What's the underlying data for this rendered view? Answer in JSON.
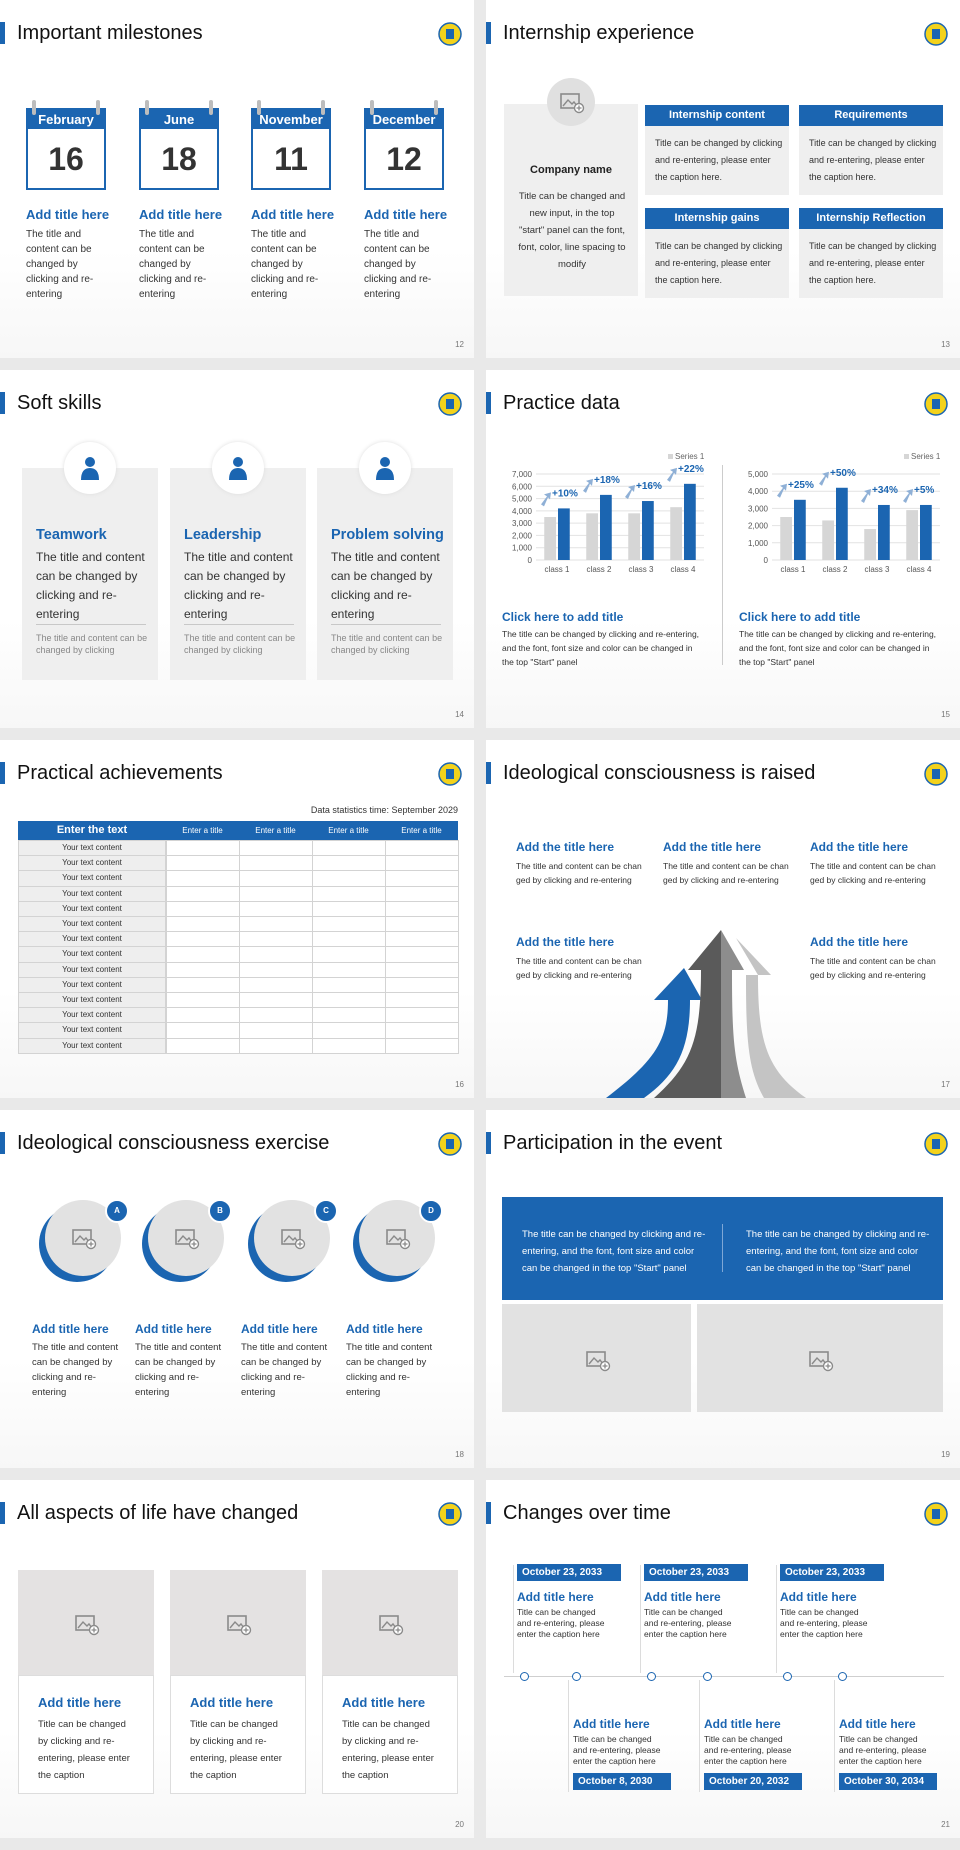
{
  "slides": [
    {
      "title": "Important milestones",
      "page": 12,
      "milestones": [
        {
          "month": "February",
          "day": 16,
          "title": "Add title here",
          "text": "The title and content can be changed by clicking and re-entering"
        },
        {
          "month": "June",
          "day": 18,
          "title": "Add title here",
          "text": "The title and content can be changed by clicking and re-entering"
        },
        {
          "month": "November",
          "day": 11,
          "title": "Add title here",
          "text": "The title and content can be changed by clicking and re-entering"
        },
        {
          "month": "December",
          "day": 12,
          "title": "Add title here",
          "text": "The title and content can be changed by clicking and re-entering"
        }
      ]
    },
    {
      "title": "Internship experience",
      "page": 13,
      "company": {
        "name": "Company name",
        "text": "Title can be changed and new input, in the top \"start\" panel can the font, font, color, line spacing to modify"
      },
      "boxes": [
        {
          "header": "Internship content",
          "text": "Title can be changed by clicking and re-entering, please enter the caption here."
        },
        {
          "header": "Requirements",
          "text": "Title can be changed by clicking and re-entering, please enter the caption here."
        },
        {
          "header": "Internship gains",
          "text": "Title can be changed by clicking and re-entering, please enter the caption here."
        },
        {
          "header": "Internship Reflection",
          "text": "Title can be changed by clicking and re-entering, please enter the caption here."
        }
      ]
    },
    {
      "title": "Soft skills",
      "page": 14,
      "skills": [
        {
          "title": "Teamwork",
          "text": "The title and content can be changed by clicking and re-entering",
          "note": "The title and content can be changed by clicking"
        },
        {
          "title": "Leadership",
          "text": "The title and content can be changed by clicking and re-entering",
          "note": "The title and content can be changed by clicking"
        },
        {
          "title": "Problem solving",
          "text": "The title and content can be changed by clicking and re-entering",
          "note": "The title and content can be changed by clicking"
        }
      ]
    },
    {
      "title": "Practice data",
      "page": 15,
      "panels": [
        {
          "chart": {
            "type": "bar",
            "categories": [
              "class 1",
              "class 2",
              "class 3",
              "class 4"
            ],
            "series": [
              {
                "name": "Series 1",
                "color": "#d6d6d6",
                "values": [
                  3500,
                  3800,
                  3800,
                  4300
                ]
              },
              {
                "color": "#1b65b1",
                "values": [
                  4200,
                  5300,
                  4800,
                  6200
                ]
              }
            ],
            "ylim": [
              0,
              7000
            ],
            "yticks": [
              0,
              {
                "value": 1000,
                "label": "1,000"
              },
              {
                "value": 2000,
                "label": "2,000"
              },
              {
                "value": 3000,
                "label": "3,000"
              },
              {
                "value": 4000,
                "label": "4,000"
              },
              {
                "value": 5000,
                "label": "5,000"
              },
              {
                "value": 6000,
                "label": "6,000"
              },
              {
                "value": 7000,
                "label": "7,000"
              }
            ],
            "growth_labels": [
              "+10%",
              "+18%",
              "+16%",
              "+22%"
            ]
          },
          "heading": "Click here to add title",
          "text": "The title can be changed by clicking and re-entering, and the font, font size and color can be changed in the top \"Start\" panel"
        },
        {
          "chart": {
            "type": "bar",
            "categories": [
              "class 1",
              "class 2",
              "class 3",
              "class 4"
            ],
            "series": [
              {
                "name": "Series 1",
                "color": "#d6d6d6",
                "values": [
                  2500,
                  2300,
                  1800,
                  2900
                ]
              },
              {
                "color": "#1b65b1",
                "values": [
                  3500,
                  4200,
                  3200,
                  3200
                ]
              }
            ],
            "ylim": [
              0,
              5000
            ],
            "yticks": [
              0,
              {
                "value": 1000,
                "label": "1,000"
              },
              {
                "value": 2000,
                "label": "2,000"
              },
              {
                "value": 3000,
                "label": "3,000"
              },
              {
                "value": 4000,
                "label": "4,000"
              },
              {
                "value": 5000,
                "label": "5,000"
              }
            ],
            "growth_labels": [
              "+25%",
              "+50%",
              "+34%",
              "+5%"
            ]
          },
          "heading": "Click here to add title",
          "text": "The title can be changed by clicking and re-entering, and the font, font size and color can be changed in the top \"Start\" panel"
        }
      ]
    },
    {
      "title": "Practical achievements",
      "page": 16,
      "note": "Data statistics time: September 2029",
      "table": {
        "header": [
          "Enter the text",
          "Enter a title",
          "Enter a title",
          "Enter a title",
          "Enter a title"
        ],
        "rows": [
          "Your text content",
          "Your text content",
          "Your text content",
          "Your text content",
          "Your text content",
          "Your text content",
          "Your text content",
          "Your text content",
          "Your text content",
          "Your text content",
          "Your text content",
          "Your text content",
          "Your text content",
          "Your text content"
        ]
      }
    },
    {
      "title": "Ideological consciousness is raised",
      "page": 17,
      "items": [
        {
          "title": "Add the title here",
          "text": "The title and content can be changed by clicking and re-entering"
        },
        {
          "title": "Add the title here",
          "text": "The title and content can be changed by clicking and re-entering"
        },
        {
          "title": "Add the title here",
          "text": "The title and content can be changed by clicking and re-entering"
        },
        {
          "title": "Add the title here",
          "text": "The title and content can be changed by clicking and re-entering"
        },
        {
          "title": "Add the title here",
          "text": "The title and content can be changed by clicking and re-entering"
        }
      ]
    },
    {
      "title": "Ideological consciousness exercise",
      "page": 18,
      "items": [
        {
          "badge": "A",
          "title": "Add title here",
          "text": "The title and content can be changed by clicking and re-entering"
        },
        {
          "badge": "B",
          "title": "Add title here",
          "text": "The title and content can be changed by clicking and re-entering"
        },
        {
          "badge": "C",
          "title": "Add title here",
          "text": "The title and content can be changed by clicking and re-entering"
        },
        {
          "badge": "D",
          "title": "Add title here",
          "text": "The title and content can be changed by clicking and re-entering"
        }
      ]
    },
    {
      "title": "Participation in the event",
      "page": 19,
      "banner": [
        "The title can be changed by clicking and re-entering, and the font, font size and color can be changed in the top \"Start\" panel",
        "The title can be changed by clicking and re-entering, and the font, font size and color can be changed in the top \"Start\" panel"
      ]
    },
    {
      "title": "All aspects of life have changed",
      "page": 20,
      "cards": [
        {
          "title": "Add title here",
          "text": "Title can be changed by clicking and re-entering, please enter the caption"
        },
        {
          "title": "Add title here",
          "text": "Title can be changed by clicking and re-entering, please enter the caption"
        },
        {
          "title": "Add title here",
          "text": "Title can be changed by clicking and re-entering, please enter the caption"
        }
      ]
    },
    {
      "title": "Changes over time",
      "page": 21,
      "top": [
        {
          "date": "October 23, 2033",
          "title": "Add title here",
          "text": "Title can be changed and re-entering, please enter the caption here"
        },
        {
          "date": "October 23, 2033",
          "title": "Add title here",
          "text": "Title can be changed and re-entering, please enter the caption here"
        },
        {
          "date": "October 23, 2033",
          "title": "Add title here",
          "text": "Title can be changed and re-entering, please enter the caption here"
        }
      ],
      "bottom": [
        {
          "date": "October 8, 2030",
          "title": "Add title here",
          "text": "Title can be changed and re-entering, please enter the caption here"
        },
        {
          "date": "October 20, 2032",
          "title": "Add title here",
          "text": "Title can be changed and re-entering, please enter the caption here"
        },
        {
          "date": "October 30, 2034",
          "title": "Add title here",
          "text": "Title can be changed and re-entering, please enter the caption here"
        }
      ]
    }
  ]
}
